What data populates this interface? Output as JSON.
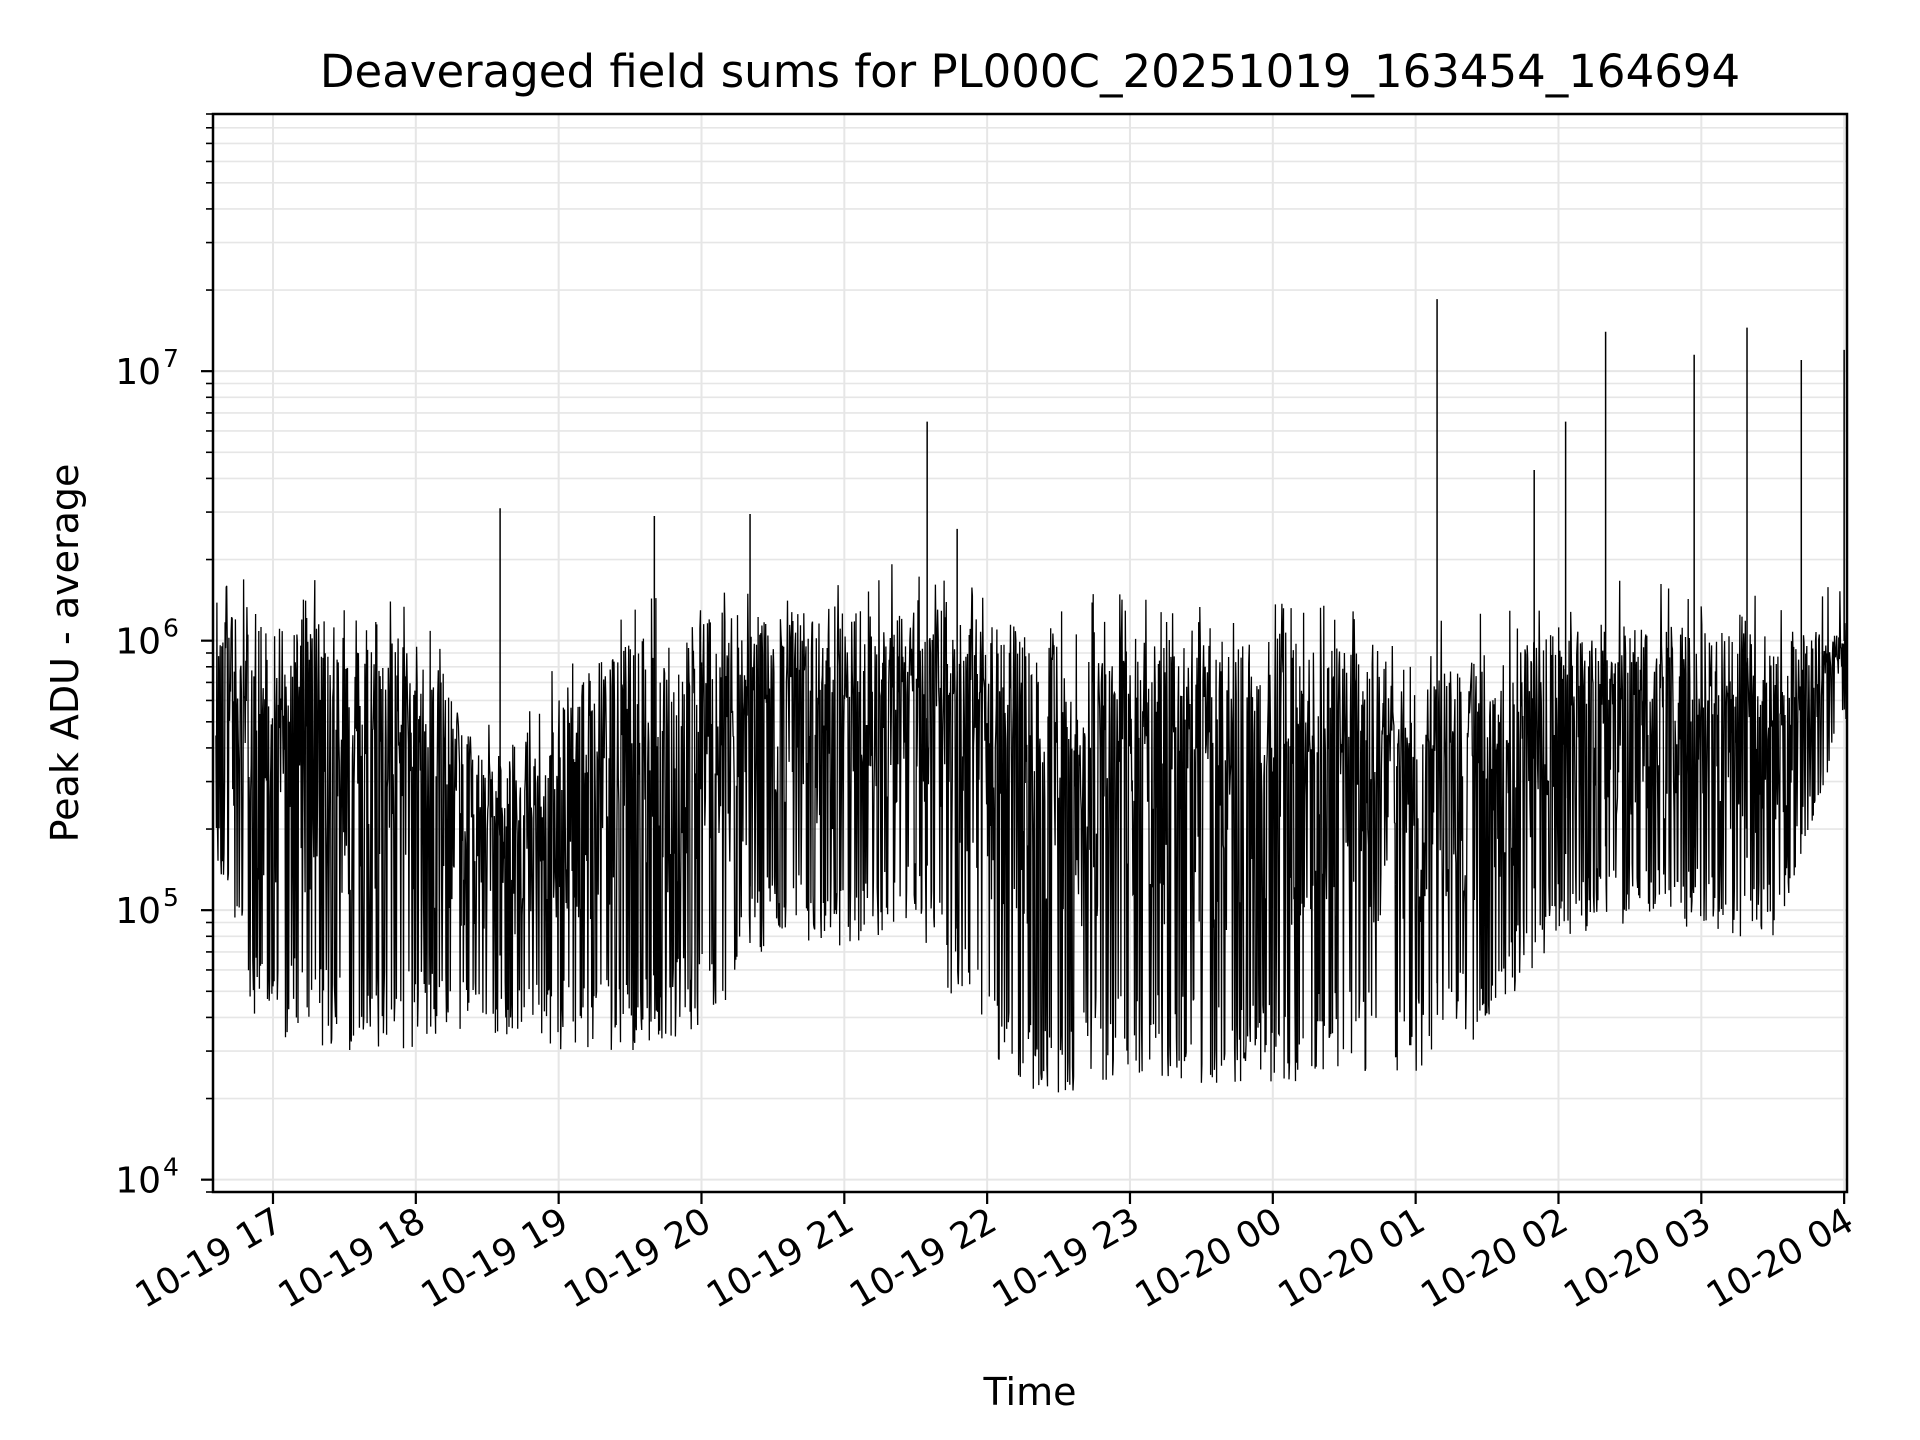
{
  "chart_data": {
    "type": "line",
    "title": "Deaveraged field sums for PL000C_20251019_163454_164694",
    "xlabel": "Time",
    "ylabel": "Peak ADU - average",
    "yscale": "log",
    "ylim": [
      9000,
      90000000
    ],
    "xlim_hours": [
      16.58,
      28.02
    ],
    "grid": true,
    "line_color": "#000000",
    "grid_color": "#e6e6e6",
    "x_ticks": [
      {
        "label": "10-19 17",
        "hour": 17
      },
      {
        "label": "10-19 18",
        "hour": 18
      },
      {
        "label": "10-19 19",
        "hour": 19
      },
      {
        "label": "10-19 20",
        "hour": 20
      },
      {
        "label": "10-19 21",
        "hour": 21
      },
      {
        "label": "10-19 22",
        "hour": 22
      },
      {
        "label": "10-19 23",
        "hour": 23
      },
      {
        "label": "10-20 00",
        "hour": 24
      },
      {
        "label": "10-20 01",
        "hour": 25
      },
      {
        "label": "10-20 02",
        "hour": 26
      },
      {
        "label": "10-20 03",
        "hour": 27
      },
      {
        "label": "10-20 04",
        "hour": 28
      }
    ],
    "y_ticks": [
      {
        "base": "10",
        "exp": "4",
        "value": 10000
      },
      {
        "base": "10",
        "exp": "5",
        "value": 100000
      },
      {
        "base": "10",
        "exp": "6",
        "value": 1000000
      },
      {
        "base": "10",
        "exp": "7",
        "value": 10000000
      }
    ],
    "envelope": {
      "description_hours": [
        16.6,
        16.9,
        17.5,
        18.0,
        18.5,
        19.0,
        19.5,
        20.0,
        20.5,
        21.0,
        21.5,
        22.0,
        22.5,
        23.0,
        23.5,
        24.0,
        24.5,
        25.0,
        25.5,
        26.0,
        26.5,
        27.0,
        27.5,
        28.0
      ],
      "upper": [
        1500000,
        1300000,
        1200000,
        1100000,
        350000,
        600000,
        1000000,
        1200000,
        1300000,
        1350000,
        1400000,
        1200000,
        1100000,
        1050000,
        1000000,
        1000000,
        950000,
        900000,
        900000,
        1100000,
        1200000,
        1100000,
        1050000,
        1200000
      ],
      "lower": [
        150000,
        35000,
        30000,
        30000,
        35000,
        30000,
        30000,
        35000,
        80000,
        70000,
        90000,
        25000,
        20000,
        25000,
        22000,
        22000,
        24000,
        24000,
        35000,
        80000,
        90000,
        85000,
        75000,
        500000
      ]
    },
    "spikes": [
      {
        "hour": 18.59,
        "value": 3100000
      },
      {
        "hour": 19.67,
        "value": 2900000
      },
      {
        "hour": 20.34,
        "value": 2950000
      },
      {
        "hour": 21.58,
        "value": 6500000
      },
      {
        "hour": 21.79,
        "value": 2600000
      },
      {
        "hour": 25.15,
        "value": 18500000
      },
      {
        "hour": 25.83,
        "value": 4300000
      },
      {
        "hour": 26.05,
        "value": 6500000
      },
      {
        "hour": 26.33,
        "value": 14000000
      },
      {
        "hour": 26.95,
        "value": 11500000
      },
      {
        "hour": 27.32,
        "value": 14500000
      },
      {
        "hour": 27.7,
        "value": 11000000
      },
      {
        "hour": 28.0,
        "value": 12000000
      }
    ]
  }
}
